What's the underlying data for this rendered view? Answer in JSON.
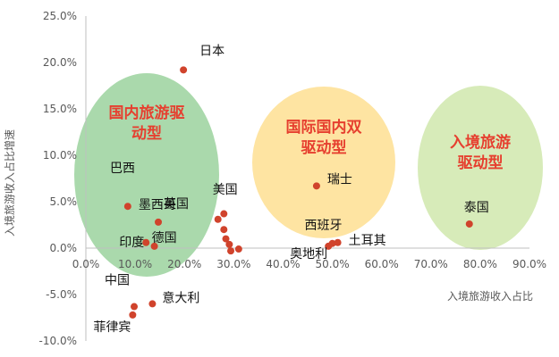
{
  "chart_data": {
    "type": "scatter",
    "title": "",
    "xlabel": "入境旅游收入占比",
    "ylabel": "入境旅游收入占比增速",
    "xlim": [
      0,
      90
    ],
    "ylim": [
      -10,
      25
    ],
    "x_ticks": [
      "0.0%",
      "10.0%",
      "20.0%",
      "30.0%",
      "40.0%",
      "50.0%",
      "60.0%",
      "70.0%",
      "80.0%",
      "90.0%"
    ],
    "y_ticks": [
      "25.0%",
      "20.0%",
      "15.0%",
      "10.0%",
      "5.0%",
      "0.0%",
      "-5.0%",
      "-10.0%"
    ],
    "grid": false,
    "marker_color": "#d0432c",
    "points": [
      {
        "x": 19.8,
        "y": 19.2,
        "label": "日本"
      },
      {
        "x": 8.5,
        "y": 4.5,
        "label": "墨西哥"
      },
      {
        "x": 14.7,
        "y": 2.8,
        "label": "英国"
      },
      {
        "x": 12.2,
        "y": 0.6,
        "label": "印度"
      },
      {
        "x": 13.9,
        "y": 0.2,
        "label": "德国"
      },
      {
        "x": 26.8,
        "y": 3.1,
        "label": "美国"
      },
      {
        "x": 28.0,
        "y": 3.7,
        "label": ""
      },
      {
        "x": 28.0,
        "y": 2.0,
        "label": ""
      },
      {
        "x": 28.4,
        "y": 1.0,
        "label": ""
      },
      {
        "x": 29.1,
        "y": 0.4,
        "label": ""
      },
      {
        "x": 29.4,
        "y": -0.3,
        "label": ""
      },
      {
        "x": 31.0,
        "y": -0.1,
        "label": ""
      },
      {
        "x": 46.8,
        "y": 6.7,
        "label": "瑞士"
      },
      {
        "x": 49.2,
        "y": 0.2,
        "label": "奥地利"
      },
      {
        "x": 50.0,
        "y": 0.5,
        "label": "西班牙"
      },
      {
        "x": 51.1,
        "y": 0.6,
        "label": "土耳其"
      },
      {
        "x": 77.8,
        "y": 2.6,
        "label": "泰国"
      },
      {
        "x": 9.8,
        "y": -6.3,
        "label": "中国"
      },
      {
        "x": 13.5,
        "y": -6.0,
        "label": "意大利"
      },
      {
        "x": 9.5,
        "y": -7.2,
        "label": "菲律宾"
      }
    ],
    "regions": [
      {
        "label_lines": [
          "国内旅游驱",
          "动型"
        ],
        "fill": "#7cc47f",
        "text_color": "#e63f2f"
      },
      {
        "label_lines": [
          "国际国内双",
          "驱动型"
        ],
        "fill": "#fdd87a",
        "text_color": "#e63f2f"
      },
      {
        "label_lines": [
          "入境旅游",
          "驱动型"
        ],
        "fill": "#c9e4a2",
        "text_color": "#e63f2f"
      }
    ],
    "extra_labels": [
      "巴西"
    ]
  }
}
